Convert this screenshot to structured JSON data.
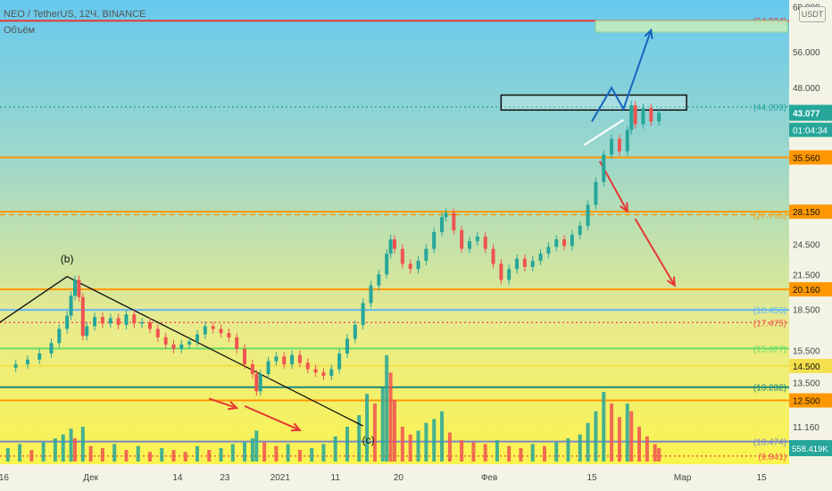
{
  "header": {
    "symbol_line": "NEO / TetherUS, 12Ч, BINANCE",
    "volume_label": "Объём"
  },
  "currency_badge": "USDT",
  "chart_data": {
    "type": "candlestick",
    "title": "NEO / TetherUS, 12Ч, BINANCE",
    "symbol": "NEO / TetherUS",
    "interval": "12Ч",
    "exchange": "BINANCE",
    "y_scale": "log",
    "ylim": [
      9.5,
      70
    ],
    "y_ticks": [
      "68.000",
      "56.000",
      "48.000",
      "24.500",
      "21.500",
      "18.500",
      "15.500",
      "13.500",
      "11.160"
    ],
    "x_ticks": [
      "16",
      "Дек",
      "14",
      "23",
      "2021",
      "11",
      "20",
      "Фев",
      "15",
      "Мар",
      "15"
    ],
    "last_price": "43.077",
    "countdown": "01:04:34",
    "volume_last": "558.419K",
    "levels": [
      {
        "value": 64.034,
        "label": "(64.034)",
        "style": "solid",
        "color": "#e53935"
      },
      {
        "value": 44.209,
        "label": "(44.209)",
        "style": "dotted",
        "color": "#26a69a"
      },
      {
        "value": 35.56,
        "label": "35.560",
        "style": "solid",
        "color": "#ff9800"
      },
      {
        "value": 27.795,
        "label": "(27.795)",
        "style": "dashed",
        "color": "#ff9800"
      },
      {
        "value": 28.15,
        "label": "28.150",
        "style": "solid",
        "color": "#ff9800"
      },
      {
        "value": 20.16,
        "label": "20.160",
        "style": "solid",
        "color": "#ff9800"
      },
      {
        "value": 18.456,
        "label": "(18.456)",
        "style": "solid",
        "color": "#64b5f6"
      },
      {
        "value": 17.475,
        "label": "(17.475)",
        "style": "dotted",
        "color": "#ef5350"
      },
      {
        "value": 15.627,
        "label": "(15.627)",
        "style": "solid",
        "color": "#66dd66"
      },
      {
        "value": 14.5,
        "label": "14.500",
        "style": "solid",
        "color": "#f4e04d"
      },
      {
        "value": 13.232,
        "label": "(13.232)",
        "style": "solid",
        "color": "#1b8a7a"
      },
      {
        "value": 12.5,
        "label": "12.500",
        "style": "solid",
        "color": "#ff9800"
      },
      {
        "value": 10.474,
        "label": "(10.474)",
        "style": "solid",
        "color": "#7986cb"
      },
      {
        "value": 9.841,
        "label": "(9.841)",
        "style": "dotted",
        "color": "#ef5350"
      }
    ],
    "wave_labels": [
      "(b)",
      "(c)"
    ],
    "colors": {
      "up": "#26a69a",
      "down": "#ef5350",
      "bullish_path": "#1565c0",
      "bearish_arrows": "#e53935"
    },
    "price_series": [
      {
        "x": 1,
        "y": 14.4
      },
      {
        "x": 4,
        "y": 14.6
      },
      {
        "x": 7,
        "y": 14.9
      },
      {
        "x": 10,
        "y": 15.3
      },
      {
        "x": 13,
        "y": 16.0
      },
      {
        "x": 15,
        "y": 17.0
      },
      {
        "x": 17,
        "y": 18.0
      },
      {
        "x": 18,
        "y": 19.6
      },
      {
        "x": 19,
        "y": 21.0
      },
      {
        "x": 20,
        "y": 19.5
      },
      {
        "x": 21,
        "y": 16.5
      },
      {
        "x": 22,
        "y": 17.2
      },
      {
        "x": 24,
        "y": 17.9
      },
      {
        "x": 26,
        "y": 17.4
      },
      {
        "x": 28,
        "y": 17.8
      },
      {
        "x": 30,
        "y": 17.3
      },
      {
        "x": 32,
        "y": 18.1
      },
      {
        "x": 34,
        "y": 17.4
      },
      {
        "x": 36,
        "y": 17.5
      },
      {
        "x": 38,
        "y": 17.0
      },
      {
        "x": 40,
        "y": 16.4
      },
      {
        "x": 42,
        "y": 15.9
      },
      {
        "x": 44,
        "y": 15.6
      },
      {
        "x": 46,
        "y": 15.9
      },
      {
        "x": 48,
        "y": 16.1
      },
      {
        "x": 50,
        "y": 16.6
      },
      {
        "x": 52,
        "y": 17.2
      },
      {
        "x": 54,
        "y": 17.0
      },
      {
        "x": 56,
        "y": 16.7
      },
      {
        "x": 58,
        "y": 16.4
      },
      {
        "x": 60,
        "y": 15.6
      },
      {
        "x": 62,
        "y": 14.6
      },
      {
        "x": 64,
        "y": 14.0
      },
      {
        "x": 65,
        "y": 13.0
      },
      {
        "x": 66,
        "y": 14.0
      },
      {
        "x": 68,
        "y": 14.8
      },
      {
        "x": 70,
        "y": 15.1
      },
      {
        "x": 72,
        "y": 14.6
      },
      {
        "x": 74,
        "y": 15.2
      },
      {
        "x": 76,
        "y": 14.7
      },
      {
        "x": 78,
        "y": 14.3
      },
      {
        "x": 80,
        "y": 14.1
      },
      {
        "x": 82,
        "y": 13.9
      },
      {
        "x": 84,
        "y": 14.3
      },
      {
        "x": 86,
        "y": 15.3
      },
      {
        "x": 88,
        "y": 16.3
      },
      {
        "x": 90,
        "y": 17.3
      },
      {
        "x": 92,
        "y": 19.0
      },
      {
        "x": 94,
        "y": 20.5
      },
      {
        "x": 96,
        "y": 21.5
      },
      {
        "x": 98,
        "y": 23.5
      },
      {
        "x": 99,
        "y": 25.0
      },
      {
        "x": 100,
        "y": 24.0
      },
      {
        "x": 102,
        "y": 22.5
      },
      {
        "x": 104,
        "y": 22.0
      },
      {
        "x": 106,
        "y": 22.8
      },
      {
        "x": 108,
        "y": 24.0
      },
      {
        "x": 110,
        "y": 25.8
      },
      {
        "x": 112,
        "y": 27.5
      },
      {
        "x": 113,
        "y": 28.0
      },
      {
        "x": 115,
        "y": 26.0
      },
      {
        "x": 117,
        "y": 24.0
      },
      {
        "x": 119,
        "y": 24.8
      },
      {
        "x": 121,
        "y": 25.3
      },
      {
        "x": 123,
        "y": 24.0
      },
      {
        "x": 125,
        "y": 22.5
      },
      {
        "x": 127,
        "y": 21.0
      },
      {
        "x": 129,
        "y": 22.0
      },
      {
        "x": 131,
        "y": 23.0
      },
      {
        "x": 133,
        "y": 22.2
      },
      {
        "x": 135,
        "y": 22.8
      },
      {
        "x": 137,
        "y": 23.5
      },
      {
        "x": 139,
        "y": 24.2
      },
      {
        "x": 141,
        "y": 25.0
      },
      {
        "x": 143,
        "y": 24.3
      },
      {
        "x": 145,
        "y": 25.5
      },
      {
        "x": 147,
        "y": 26.5
      },
      {
        "x": 149,
        "y": 29.0
      },
      {
        "x": 151,
        "y": 32.0
      },
      {
        "x": 153,
        "y": 36.0
      },
      {
        "x": 155,
        "y": 38.5
      },
      {
        "x": 157,
        "y": 36.5
      },
      {
        "x": 159,
        "y": 40.0
      },
      {
        "x": 160,
        "y": 44.5
      },
      {
        "x": 161,
        "y": 41.0
      },
      {
        "x": 163,
        "y": 44.0
      },
      {
        "x": 165,
        "y": 41.5
      },
      {
        "x": 167,
        "y": 43.077
      }
    ],
    "volume_series": [
      {
        "x": 2,
        "v": 0.7
      },
      {
        "x": 5,
        "v": 0.9
      },
      {
        "x": 8,
        "v": 0.6
      },
      {
        "x": 11,
        "v": 1.0
      },
      {
        "x": 14,
        "v": 1.2
      },
      {
        "x": 16,
        "v": 1.4
      },
      {
        "x": 18,
        "v": 1.7
      },
      {
        "x": 19,
        "v": 1.2
      },
      {
        "x": 21,
        "v": 1.8
      },
      {
        "x": 23,
        "v": 0.8
      },
      {
        "x": 26,
        "v": 0.7
      },
      {
        "x": 29,
        "v": 0.9
      },
      {
        "x": 32,
        "v": 0.6
      },
      {
        "x": 35,
        "v": 0.8
      },
      {
        "x": 38,
        "v": 0.5
      },
      {
        "x": 41,
        "v": 0.7
      },
      {
        "x": 44,
        "v": 0.6
      },
      {
        "x": 47,
        "v": 0.5
      },
      {
        "x": 50,
        "v": 0.8
      },
      {
        "x": 53,
        "v": 0.6
      },
      {
        "x": 56,
        "v": 0.7
      },
      {
        "x": 59,
        "v": 0.9
      },
      {
        "x": 62,
        "v": 1.0
      },
      {
        "x": 64,
        "v": 1.2
      },
      {
        "x": 65,
        "v": 1.6
      },
      {
        "x": 67,
        "v": 1.0
      },
      {
        "x": 70,
        "v": 0.8
      },
      {
        "x": 73,
        "v": 0.9
      },
      {
        "x": 76,
        "v": 0.6
      },
      {
        "x": 79,
        "v": 0.7
      },
      {
        "x": 82,
        "v": 0.9
      },
      {
        "x": 85,
        "v": 1.3
      },
      {
        "x": 88,
        "v": 1.8
      },
      {
        "x": 91,
        "v": 2.4
      },
      {
        "x": 93,
        "v": 3.5
      },
      {
        "x": 95,
        "v": 3.0
      },
      {
        "x": 97,
        "v": 3.8
      },
      {
        "x": 98,
        "v": 5.5
      },
      {
        "x": 99,
        "v": 4.6
      },
      {
        "x": 100,
        "v": 3.2
      },
      {
        "x": 102,
        "v": 1.8
      },
      {
        "x": 104,
        "v": 1.4
      },
      {
        "x": 106,
        "v": 1.6
      },
      {
        "x": 108,
        "v": 2.0
      },
      {
        "x": 110,
        "v": 2.2
      },
      {
        "x": 112,
        "v": 2.6
      },
      {
        "x": 114,
        "v": 1.5
      },
      {
        "x": 117,
        "v": 1.1
      },
      {
        "x": 120,
        "v": 1.0
      },
      {
        "x": 123,
        "v": 0.9
      },
      {
        "x": 126,
        "v": 1.1
      },
      {
        "x": 129,
        "v": 0.8
      },
      {
        "x": 132,
        "v": 0.7
      },
      {
        "x": 135,
        "v": 0.9
      },
      {
        "x": 138,
        "v": 0.8
      },
      {
        "x": 141,
        "v": 1.0
      },
      {
        "x": 144,
        "v": 1.2
      },
      {
        "x": 147,
        "v": 1.4
      },
      {
        "x": 149,
        "v": 2.0
      },
      {
        "x": 151,
        "v": 2.6
      },
      {
        "x": 153,
        "v": 3.6
      },
      {
        "x": 155,
        "v": 3.0
      },
      {
        "x": 157,
        "v": 2.3
      },
      {
        "x": 159,
        "v": 3.0
      },
      {
        "x": 160,
        "v": 2.6
      },
      {
        "x": 162,
        "v": 1.8
      },
      {
        "x": 164,
        "v": 1.3
      },
      {
        "x": 166,
        "v": 0.9
      },
      {
        "x": 167,
        "v": 0.7
      }
    ],
    "x_range": [
      0,
      200
    ],
    "vol_max": 6,
    "tick_positions": [
      1,
      23,
      45,
      57,
      71,
      85,
      101,
      124,
      150,
      173,
      193
    ],
    "annotations": {
      "resistance_box": [
        [
          127,
          46.5
        ],
        [
          174,
          43.6
        ]
      ],
      "target_box": [
        [
          151,
          64.0
        ],
        [
          206,
          61.0
        ]
      ],
      "blue_path": [
        [
          150,
          41.5
        ],
        [
          155,
          48.0
        ],
        [
          158,
          43.8
        ],
        [
          165,
          61.5
        ]
      ],
      "white_line": [
        [
          148,
          37.5
        ],
        [
          158,
          41.8
        ]
      ],
      "red_arrow_1": [
        [
          152,
          35.0
        ],
        [
          159,
          28.2
        ]
      ],
      "red_arrow_2": [
        [
          161,
          27.3
        ],
        [
          171,
          20.5
        ]
      ],
      "red_arrow_3": [
        [
          53,
          12.6
        ],
        [
          60,
          12.1
        ]
      ],
      "red_arrow_4": [
        [
          62,
          12.2
        ],
        [
          76,
          11.0
        ]
      ],
      "wave_b_line": [
        [
          0,
          17.5
        ],
        [
          17,
          21.3
        ],
        [
          92,
          11.2
        ]
      ]
    }
  }
}
